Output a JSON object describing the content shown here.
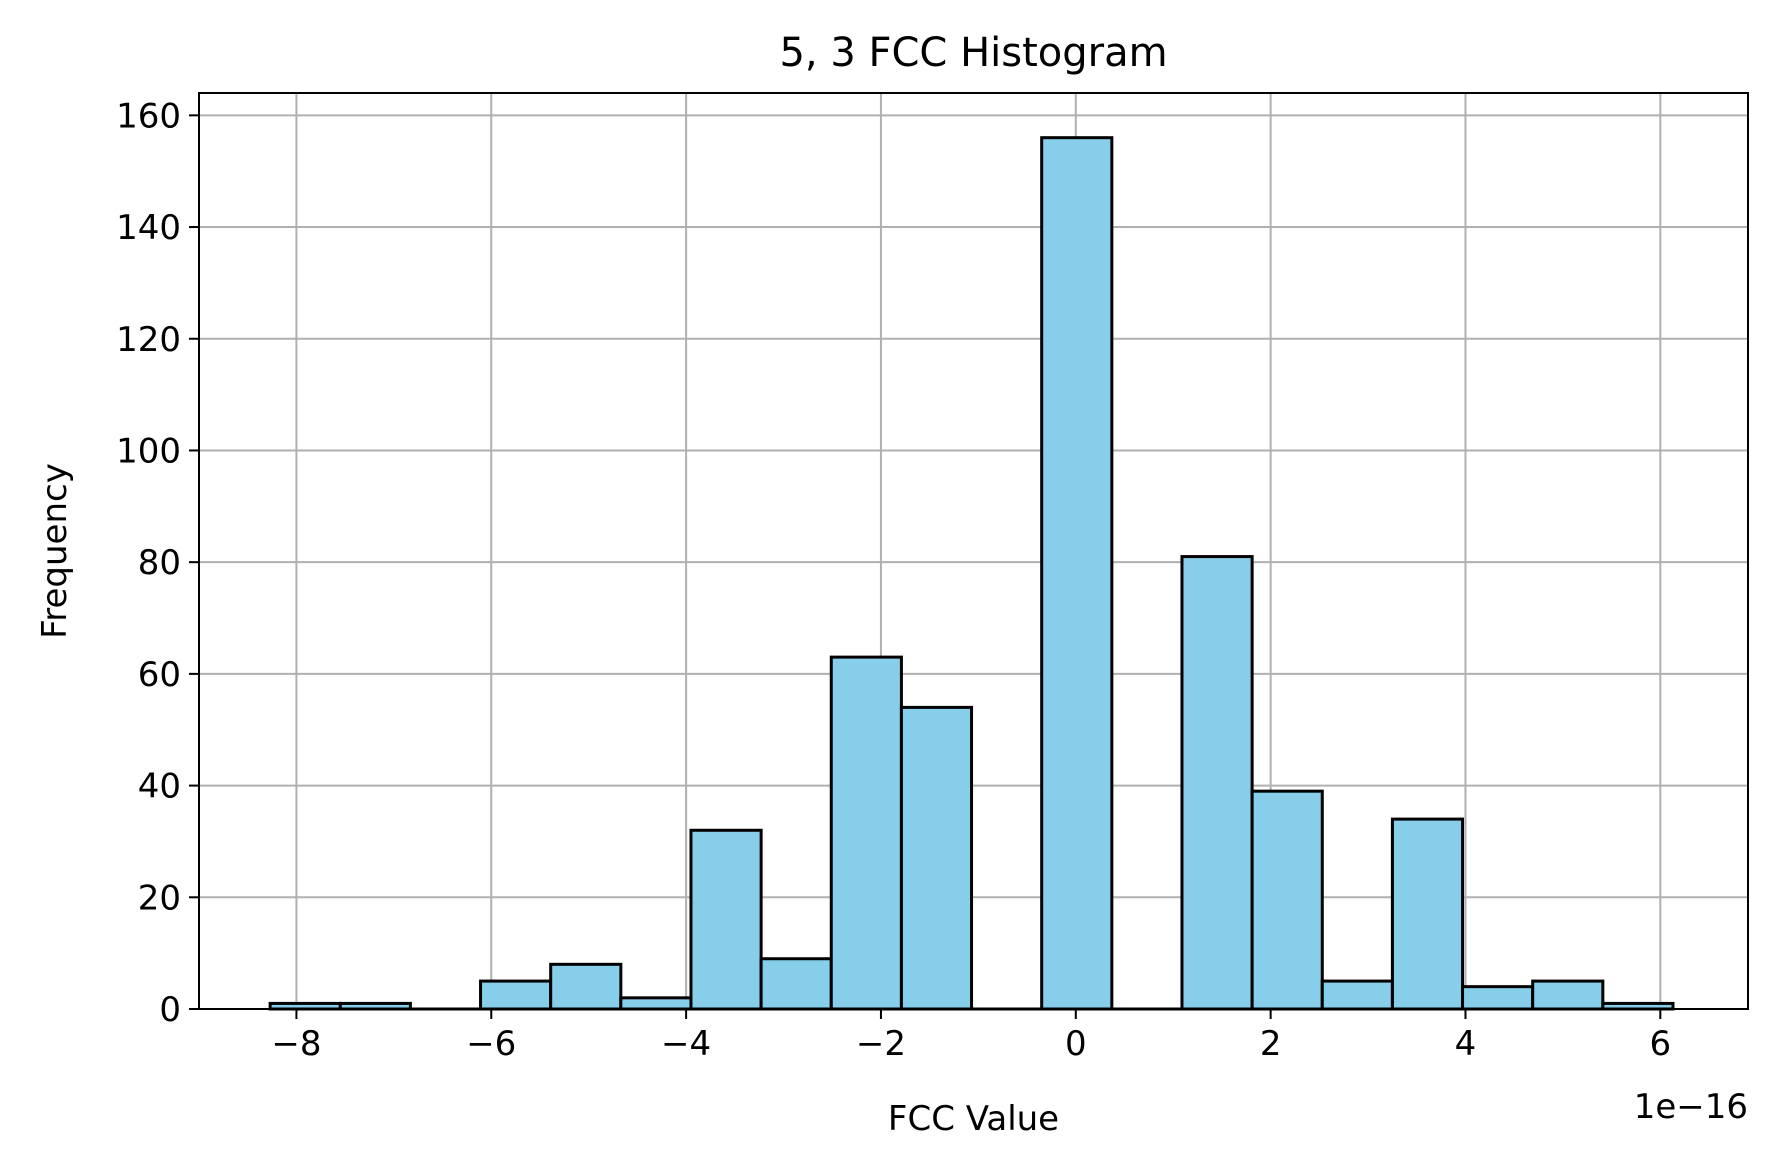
{
  "chart_data": {
    "type": "bar",
    "title": "5, 3 FCC Histogram",
    "xlabel": "FCC Value",
    "ylabel": "Frequency",
    "x_offset_label": "1e−16",
    "xlim": [
      -9.0,
      6.9
    ],
    "ylim": [
      0,
      164
    ],
    "xticks": [
      -8,
      -6,
      -4,
      -2,
      0,
      2,
      4,
      6
    ],
    "xtick_labels": [
      "−8",
      "−6",
      "−4",
      "−2",
      "0",
      "2",
      "4",
      "6"
    ],
    "yticks": [
      0,
      20,
      40,
      60,
      80,
      100,
      120,
      140,
      160
    ],
    "ytick_labels": [
      "0",
      "20",
      "40",
      "60",
      "80",
      "100",
      "120",
      "140",
      "160"
    ],
    "grid": true,
    "bar_color": "#87ceeb",
    "edge_color": "#000000",
    "bins": [
      {
        "x0": -8.27,
        "x1": -7.55,
        "value": 1
      },
      {
        "x0": -7.55,
        "x1": -6.83,
        "value": 1
      },
      {
        "x0": -6.83,
        "x1": -6.11,
        "value": 0
      },
      {
        "x0": -6.11,
        "x1": -5.39,
        "value": 5
      },
      {
        "x0": -5.39,
        "x1": -4.67,
        "value": 8
      },
      {
        "x0": -4.67,
        "x1": -3.95,
        "value": 2
      },
      {
        "x0": -3.95,
        "x1": -3.23,
        "value": 32
      },
      {
        "x0": -3.23,
        "x1": -2.51,
        "value": 9
      },
      {
        "x0": -2.51,
        "x1": -1.79,
        "value": 63
      },
      {
        "x0": -1.79,
        "x1": -1.07,
        "value": 54
      },
      {
        "x0": -1.07,
        "x1": -0.35,
        "value": 0
      },
      {
        "x0": -0.35,
        "x1": 0.37,
        "value": 156
      },
      {
        "x0": 0.37,
        "x1": 1.09,
        "value": 0
      },
      {
        "x0": 1.09,
        "x1": 1.81,
        "value": 81
      },
      {
        "x0": 1.81,
        "x1": 2.53,
        "value": 39
      },
      {
        "x0": 2.53,
        "x1": 3.25,
        "value": 5
      },
      {
        "x0": 3.25,
        "x1": 3.97,
        "value": 34
      },
      {
        "x0": 3.97,
        "x1": 4.69,
        "value": 4
      },
      {
        "x0": 4.69,
        "x1": 5.41,
        "value": 5
      },
      {
        "x0": 5.41,
        "x1": 6.13,
        "value": 1
      }
    ]
  }
}
